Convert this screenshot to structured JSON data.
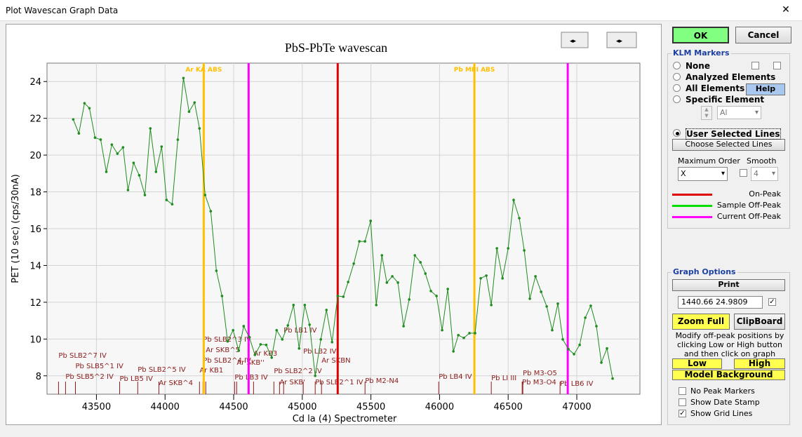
{
  "window": {
    "title": "Plot Wavescan Graph Data"
  },
  "chart_data": {
    "type": "line",
    "title": "PbS-PbTe wavescan",
    "xlabel": "Cd la (4) Spectrometer",
    "ylabel": "PET (10 sec) (cps/30nA)",
    "xlim": [
      43140,
      47460
    ],
    "ylim": [
      7,
      25
    ],
    "xticks": [
      43500,
      44000,
      44500,
      45000,
      45500,
      46000,
      46500,
      47000
    ],
    "yticks": [
      8,
      10,
      12,
      14,
      16,
      18,
      20,
      22,
      24
    ],
    "grid": true,
    "x": [
      43331,
      43372,
      43413,
      43449,
      43490,
      43531,
      43572,
      43612,
      43653,
      43694,
      43730,
      43771,
      43812,
      43853,
      43893,
      43934,
      43975,
      44011,
      44052,
      44093,
      44134,
      44175,
      44215,
      44251,
      44292,
      44333,
      44374,
      44415,
      44456,
      44496,
      44537,
      44573,
      44614,
      44655,
      44696,
      44737,
      44777,
      44813,
      44854,
      44895,
      44936,
      44977,
      45018,
      45053,
      45094,
      45135,
      45176,
      45217,
      45258,
      45299,
      45334,
      45375,
      45416,
      45457,
      45498,
      45539,
      45580,
      45616,
      45656,
      45697,
      45738,
      45779,
      45820,
      45861,
      45897,
      45937,
      45978,
      46019,
      46060,
      46101,
      46137,
      46177,
      46218,
      46259,
      46300,
      46341,
      46377,
      46418,
      46459,
      46500,
      46540,
      46581,
      46617,
      46658,
      46699,
      46740,
      46781,
      46821,
      46862,
      46898,
      46939,
      46980,
      47021,
      47062,
      47102,
      47143,
      47179,
      47220,
      47261
    ],
    "series": [
      {
        "color": "#1e8c1e",
        "values": [
          21.94,
          21.18,
          22.82,
          22.55,
          20.95,
          20.84,
          19.09,
          20.57,
          20.08,
          20.42,
          18.1,
          19.58,
          18.9,
          17.83,
          21.45,
          19.09,
          20.46,
          17.56,
          17.33,
          20.84,
          24.19,
          22.36,
          22.86,
          21.45,
          17.83,
          16.95,
          13.71,
          12.34,
          9.87,
          10.48,
          9.37,
          10.7,
          10.1,
          9.14,
          9.71,
          9.68,
          8.99,
          10.48,
          9.98,
          10.74,
          11.85,
          9.49,
          11.85,
          10.78,
          8.0,
          9.98,
          11.58,
          9.83,
          12.34,
          12.3,
          13.1,
          14.1,
          15.31,
          15.31,
          16.42,
          11.85,
          14.55,
          13.07,
          13.41,
          13.07,
          10.7,
          12.15,
          14.55,
          14.17,
          13.56,
          12.61,
          12.34,
          10.48,
          12.72,
          9.33,
          10.21,
          10.06,
          10.32,
          10.32,
          13.3,
          13.45,
          11.85,
          14.93,
          13.3,
          14.93,
          17.56,
          16.57,
          14.82,
          12.19,
          13.41,
          12.57,
          11.77,
          10.48,
          11.92,
          9.98,
          9.45,
          9.18,
          9.68,
          11.16,
          11.81,
          10.7,
          8.72,
          9.49,
          7.85
        ]
      }
    ],
    "vlines": [
      {
        "x": 44282,
        "color": "#ffc000",
        "label": "Ar KA ABS"
      },
      {
        "x": 44609,
        "color": "#ff00ff"
      },
      {
        "x": 45258,
        "color": "#e00000"
      },
      {
        "x": 46254,
        "color": "#ffc000",
        "label": "Pb MIII ABS"
      },
      {
        "x": 46934,
        "color": "#ff00ff"
      }
    ],
    "markers": [
      {
        "label": "Pb SLB2^7 IV",
        "x": 43224
      },
      {
        "label": "Pb SLB5^1 IV",
        "x": 43347
      },
      {
        "label": "Pb SLB5^2 IV",
        "x": 43275
      },
      {
        "label": "Pb LB5 IV",
        "x": 43669
      },
      {
        "label": "Pb SLB2^5 IV",
        "x": 43801
      },
      {
        "label": "Ar SKB^4",
        "x": 43955
      },
      {
        "label": "Pb SLB2^3 IV",
        "x": 44277
      },
      {
        "label": "Ar SKB^5",
        "x": 44297
      },
      {
        "label": "Pb SLB2^4 IV",
        "x": 44277
      },
      {
        "label": "Ar KB1",
        "x": 44251
      },
      {
        "label": "Ar SKB''",
        "x": 44522
      },
      {
        "label": "Ar KB3",
        "x": 44645
      },
      {
        "label": "Pb LB3 IV",
        "x": 44507
      },
      {
        "label": "Pb LB1 IV",
        "x": 44864
      },
      {
        "label": "Pb LB2 IV",
        "x": 45007
      },
      {
        "label": "Ar SKBN",
        "x": 45140
      },
      {
        "label": "Pb SLB2^2 IV",
        "x": 44793
      },
      {
        "label": "Ar SKB'",
        "x": 44834
      },
      {
        "label": "Pb SLB2^1 IV",
        "x": 45094
      },
      {
        "label": "Pb M2-N4",
        "x": 45457
      },
      {
        "label": "Pb LB4 IV",
        "x": 45994
      },
      {
        "label": "Pb LI III",
        "x": 46377
      },
      {
        "label": "Pb M3-O5",
        "x": 46607
      },
      {
        "label": "Pb M3-O4",
        "x": 46602
      },
      {
        "label": "Pb LB6 IV",
        "x": 46878
      }
    ]
  },
  "panel": {
    "ok": "OK",
    "cancel": "Cancel",
    "klm": {
      "title": "KLM Markers",
      "options": [
        "None",
        "Analyzed Elements",
        "All Elements",
        "Specific Element",
        "User Selected Lines"
      ],
      "selected": 4,
      "help": "Help",
      "element": "Al",
      "choose": "Choose Selected Lines",
      "max_order_label": "Maximum Order",
      "max_order": "X",
      "smooth_label": "Smooth",
      "smooth": "4",
      "legend": [
        {
          "name": "On-Peak",
          "color": "#e00000"
        },
        {
          "name": "Sample Off-Peak",
          "color": "#00e000"
        },
        {
          "name": "Current Off-Peak",
          "color": "#ff00ff"
        }
      ]
    },
    "graph_options": {
      "title": "Graph Options",
      "print": "Print",
      "coords": "1440.66  24.9809",
      "zoom_full": "Zoom Full",
      "clipboard": "ClipBoard",
      "hint": "Modify off-peak positions by clicking Low or High button and then click on graph",
      "low": "Low",
      "high": "High",
      "model_background": "Model  Background",
      "checks": [
        {
          "label": "No Peak Markers",
          "checked": false
        },
        {
          "label": "Show Date Stamp",
          "checked": false
        },
        {
          "label": "Show Grid Lines",
          "checked": true
        }
      ]
    }
  }
}
